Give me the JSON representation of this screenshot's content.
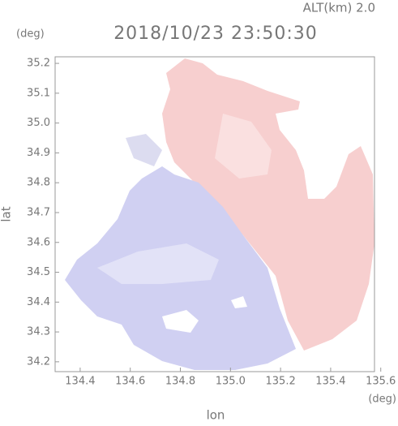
{
  "header": {
    "altitude": "ALT(km) 2.0",
    "time": "2018/10/23 23:50:30",
    "y_unit": "(deg)",
    "x_unit": "(deg)"
  },
  "axes": {
    "xlabel": "lon",
    "ylabel": "lat",
    "xlim": [
      134.3,
      135.575
    ],
    "ylim": [
      34.167,
      35.222
    ],
    "xticks": [
      134.4,
      134.6,
      134.8,
      {
        "value": 135,
        "label": "135.0"
      },
      135.2,
      135.4,
      135.6
    ],
    "yticks": [
      {
        "value": 34.2,
        "label": "34.2"
      },
      34.3,
      34.4,
      34.5,
      34.6,
      34.7,
      34.8,
      34.9,
      {
        "value": 35,
        "label": "35.0"
      },
      35.1,
      35.2
    ]
  }
}
